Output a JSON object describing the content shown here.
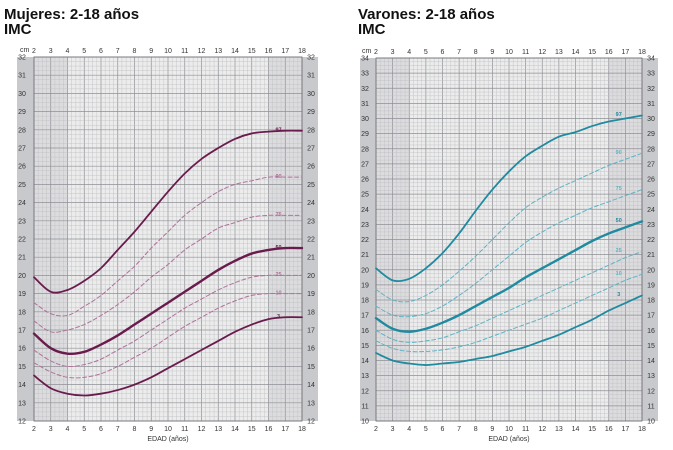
{
  "chart_data": [
    {
      "type": "line",
      "title": "Mujeres: 2-18 años",
      "subtitle": "IMC",
      "xlabel": "EDAD (años)",
      "ylabel": "cm",
      "xlim": [
        2,
        18
      ],
      "ylim": [
        12,
        32
      ],
      "x_ticks": [
        "2",
        "3",
        "4",
        "5",
        "6",
        "7",
        "8",
        "9",
        "10",
        "11",
        "12",
        "13",
        "14",
        "15",
        "16",
        "17",
        "18"
      ],
      "y_ticks": [
        "12",
        "13",
        "14",
        "15",
        "16",
        "17",
        "18",
        "19",
        "20",
        "21",
        "22",
        "23",
        "24",
        "25",
        "26",
        "27",
        "28",
        "29",
        "30",
        "31",
        "32"
      ],
      "grid": true,
      "color": "#6a1b4d",
      "x": [
        2,
        3,
        4,
        5,
        6,
        7,
        8,
        9,
        10,
        11,
        12,
        13,
        14,
        15,
        16,
        17,
        18
      ],
      "series": [
        {
          "name": "97",
          "style": "solid",
          "values": [
            19.9,
            19.1,
            19.2,
            19.7,
            20.4,
            21.4,
            22.4,
            23.5,
            24.6,
            25.6,
            26.4,
            27.0,
            27.5,
            27.8,
            27.9,
            27.95,
            27.95
          ]
        },
        {
          "name": "90",
          "style": "dashed",
          "values": [
            18.5,
            17.9,
            17.8,
            18.3,
            18.9,
            19.7,
            20.5,
            21.5,
            22.4,
            23.3,
            24.0,
            24.6,
            25.0,
            25.2,
            25.4,
            25.4,
            25.4
          ]
        },
        {
          "name": "75",
          "style": "dashed",
          "values": [
            17.5,
            16.9,
            17.0,
            17.3,
            17.8,
            18.4,
            19.1,
            19.9,
            20.6,
            21.4,
            22.0,
            22.6,
            22.9,
            23.2,
            23.3,
            23.3,
            23.3
          ]
        },
        {
          "name": "50",
          "style": "bold",
          "values": [
            16.8,
            16.0,
            15.7,
            15.8,
            16.2,
            16.7,
            17.3,
            17.9,
            18.5,
            19.1,
            19.7,
            20.3,
            20.8,
            21.2,
            21.4,
            21.5,
            21.5
          ]
        },
        {
          "name": "25",
          "style": "dashed",
          "values": [
            15.9,
            15.3,
            15.0,
            15.1,
            15.4,
            15.9,
            16.4,
            17.0,
            17.6,
            18.2,
            18.7,
            19.2,
            19.6,
            19.9,
            20.0,
            20.0,
            20.0
          ]
        },
        {
          "name": "10",
          "style": "dashed",
          "values": [
            15.2,
            14.7,
            14.4,
            14.4,
            14.6,
            15.0,
            15.5,
            16.0,
            16.6,
            17.2,
            17.7,
            18.2,
            18.6,
            18.9,
            19.0,
            19.0,
            19.0
          ]
        },
        {
          "name": "3",
          "style": "solid",
          "values": [
            14.5,
            13.8,
            13.5,
            13.4,
            13.5,
            13.7,
            14.0,
            14.4,
            14.9,
            15.4,
            15.9,
            16.4,
            16.9,
            17.3,
            17.6,
            17.7,
            17.7
          ]
        }
      ]
    },
    {
      "type": "line",
      "title": "Varones: 2-18 años",
      "subtitle": "IMC",
      "xlabel": "EDAD (años)",
      "ylabel": "cm",
      "xlim": [
        2,
        18
      ],
      "ylim": [
        10,
        34
      ],
      "x_ticks": [
        "2",
        "3",
        "4",
        "5",
        "6",
        "7",
        "8",
        "9",
        "10",
        "11",
        "12",
        "13",
        "14",
        "15",
        "16",
        "17",
        "18"
      ],
      "y_ticks": [
        "10",
        "11",
        "12",
        "13",
        "14",
        "15",
        "16",
        "17",
        "18",
        "19",
        "20",
        "21",
        "22",
        "23",
        "24",
        "25",
        "26",
        "27",
        "28",
        "29",
        "30",
        "31",
        "32",
        "33",
        "34"
      ],
      "grid": true,
      "color": "#1f8aa0",
      "x": [
        2,
        3,
        4,
        5,
        6,
        7,
        8,
        9,
        10,
        11,
        12,
        13,
        14,
        15,
        16,
        17,
        18
      ],
      "series": [
        {
          "name": "97",
          "style": "solid",
          "values": [
            20.1,
            19.3,
            19.4,
            20.1,
            21.1,
            22.4,
            23.9,
            25.3,
            26.5,
            27.5,
            28.2,
            28.8,
            29.1,
            29.5,
            29.8,
            30.0,
            30.2
          ]
        },
        {
          "name": "90",
          "style": "dashed",
          "values": [
            18.7,
            18.0,
            17.9,
            18.3,
            19.0,
            19.9,
            20.9,
            22.0,
            23.1,
            24.1,
            24.8,
            25.4,
            25.9,
            26.4,
            26.9,
            27.3,
            27.7
          ]
        },
        {
          "name": "75",
          "style": "dashed",
          "values": [
            17.6,
            17.0,
            16.9,
            17.1,
            17.6,
            18.3,
            19.1,
            20.0,
            20.9,
            21.8,
            22.5,
            23.1,
            23.6,
            24.1,
            24.5,
            24.9,
            25.3
          ]
        },
        {
          "name": "50",
          "style": "bold",
          "values": [
            16.8,
            16.1,
            15.9,
            16.1,
            16.5,
            17.0,
            17.6,
            18.2,
            18.8,
            19.5,
            20.1,
            20.7,
            21.3,
            21.9,
            22.4,
            22.8,
            23.2
          ]
        },
        {
          "name": "25",
          "style": "dashed",
          "values": [
            16.0,
            15.4,
            15.2,
            15.3,
            15.5,
            15.9,
            16.3,
            16.8,
            17.3,
            17.8,
            18.3,
            18.8,
            19.3,
            19.8,
            20.3,
            20.8,
            21.2
          ]
        },
        {
          "name": "10",
          "style": "dashed",
          "values": [
            15.3,
            14.8,
            14.6,
            14.6,
            14.7,
            14.9,
            15.2,
            15.6,
            16.0,
            16.4,
            16.8,
            17.3,
            17.8,
            18.3,
            18.8,
            19.3,
            19.7
          ]
        },
        {
          "name": "3",
          "style": "solid",
          "values": [
            14.5,
            14.0,
            13.8,
            13.7,
            13.8,
            13.9,
            14.1,
            14.3,
            14.6,
            14.9,
            15.3,
            15.7,
            16.2,
            16.7,
            17.3,
            17.8,
            18.3
          ]
        }
      ]
    }
  ]
}
